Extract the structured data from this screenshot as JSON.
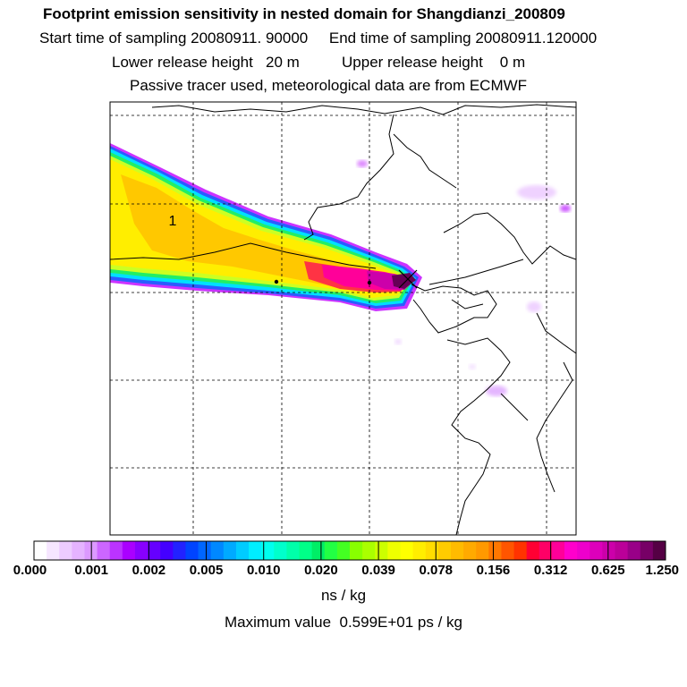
{
  "header": {
    "title": "Footprint emission sensitivity in nested domain for Shangdianzi_200809",
    "start_label": "Start time of sampling",
    "start_value": "20080911. 90000",
    "end_label": "End time of sampling",
    "end_value": "20080911.120000",
    "lower_label": "Lower release height",
    "lower_value": "20 m",
    "upper_label": "Upper release height",
    "upper_value": "0 m",
    "note": "Passive tracer used, meteorological data are from ECMWF"
  },
  "chart_data": {
    "type": "heatmap",
    "title": "Footprint emission sensitivity in nested domain for Shangdianzi_200809",
    "grid": true,
    "map_label": "1",
    "colorbar": {
      "tick_labels": [
        "0.000",
        "0.001",
        "0.002",
        "0.005",
        "0.010",
        "0.020",
        "0.039",
        "0.078",
        "0.156",
        "0.312",
        "0.625",
        "1.250"
      ],
      "units": "ns / kg",
      "colors": [
        "#ffffff",
        "#f6e6ff",
        "#edccff",
        "#e5b3ff",
        "#dc99ff",
        "#cc66ff",
        "#bb33ff",
        "#aa00ff",
        "#8800ff",
        "#6600ff",
        "#4400ff",
        "#2222ff",
        "#0044ff",
        "#0066ff",
        "#0088ff",
        "#00aaff",
        "#00ccff",
        "#00eeff",
        "#00ffee",
        "#00ffcc",
        "#00ffaa",
        "#00ff88",
        "#00ee66",
        "#22ff44",
        "#44ff22",
        "#88ff00",
        "#aaff00",
        "#ccff00",
        "#eeff00",
        "#ffff00",
        "#ffee00",
        "#ffdd00",
        "#ffcc00",
        "#ffbb00",
        "#ffaa00",
        "#ff9900",
        "#ff7700",
        "#ff5500",
        "#ff3300",
        "#ff0033",
        "#ff0066",
        "#ff0099",
        "#ff00cc",
        "#ee00cc",
        "#dd00bb",
        "#cc00aa",
        "#bb0099",
        "#990088",
        "#770066",
        "#550044"
      ]
    },
    "maximum_label": "Maximum value",
    "maximum_value": "0.599E+01 ps / kg"
  }
}
